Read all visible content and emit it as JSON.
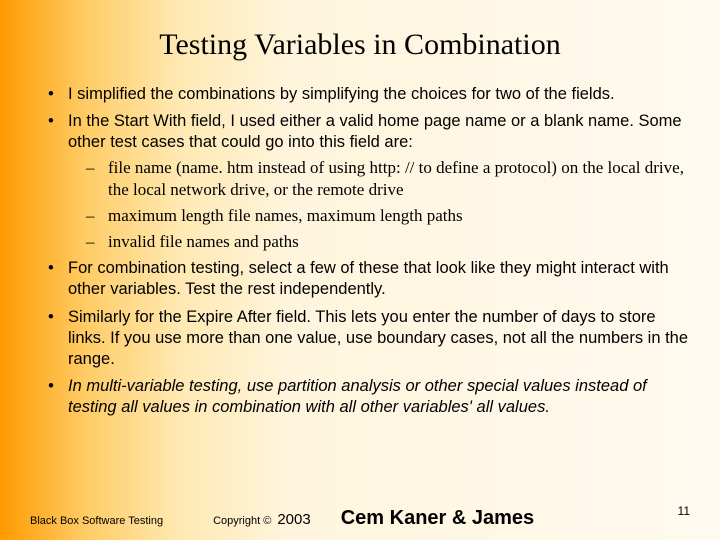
{
  "title": "Testing Variables in Combination",
  "bullets": {
    "b1": "I simplified the combinations by simplifying the choices for two of the fields.",
    "b2": "In the Start With field, I used either a valid home page name or a blank name. Some other test cases that could go into this field are:",
    "sub1": "file name (name. htm instead of using http: // to define a protocol) on the local drive, the local network drive, or the remote drive",
    "sub2": "maximum length file names, maximum length paths",
    "sub3": "invalid file names and paths",
    "b3": "For combination testing, select a few of these that look like they might interact with other variables. Test the rest independently.",
    "b4": "Similarly for the Expire After field. This lets you enter the number of days to store links. If you use more than one value, use boundary cases, not all the numbers in the range.",
    "b5": "In multi-variable testing, use partition analysis or other special values instead of testing all values in combination with all other variables' all values."
  },
  "footer": {
    "left": "Black Box Software Testing",
    "copyright": "Copyright ©",
    "year": "2003",
    "authors": "Cem Kaner & James"
  },
  "slidenum": "11",
  "colors": {
    "text": "#000000",
    "gradient_start": "#ff9a00",
    "gradient_end": "#fffaf0"
  },
  "fonts": {
    "title_family": "Times New Roman",
    "body_family": "Arial",
    "sub_family": "Times New Roman",
    "title_size_pt": 22,
    "body_size_pt": 12,
    "sub_size_pt": 13
  }
}
